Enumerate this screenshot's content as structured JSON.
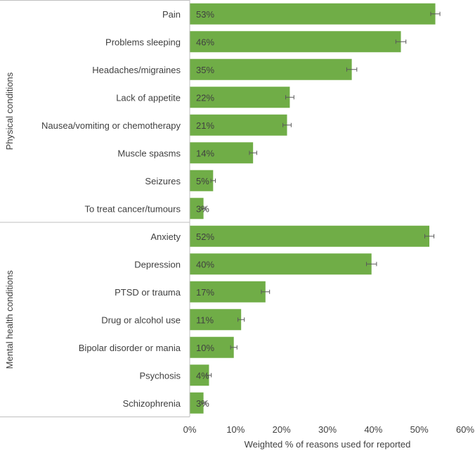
{
  "chart_data": {
    "type": "bar",
    "orientation": "horizontal",
    "xlabel": "Weighted % of reasons used for reported",
    "xlim": [
      0,
      60
    ],
    "xticks": [
      "0%",
      "10%",
      "20%",
      "30%",
      "40%",
      "50%",
      "60%"
    ],
    "grid": false,
    "bar_color": "#70ad47",
    "groups": [
      {
        "label": "Physical conditions",
        "categories": [
          "Pain",
          "Problems sleeping",
          "Headaches/migraines",
          "Lack of appetite",
          "Nausea/vomiting or chemotherapy",
          "Muscle spasms",
          "Seizures",
          "To treat cancer/tumours"
        ],
        "values": [
          53.5,
          46,
          35.3,
          21.8,
          21.2,
          13.8,
          5.1,
          3.0
        ],
        "labels": [
          "53%",
          "46%",
          "35%",
          "22%",
          "21%",
          "14%",
          "5%",
          "3%"
        ],
        "error": [
          1.0,
          1.1,
          1.1,
          0.9,
          0.9,
          0.8,
          0.5,
          0.4
        ]
      },
      {
        "label": "Mental health conditions",
        "categories": [
          "Anxiety",
          "Depression",
          "PTSD or trauma",
          "Drug or alcohol use",
          "Bipolar disorder or mania",
          "Psychosis",
          "Schizophrenia"
        ],
        "values": [
          52.2,
          39.6,
          16.5,
          11.2,
          9.6,
          4.2,
          3.0
        ],
        "labels": [
          "52%",
          "40%",
          "17%",
          "11%",
          "10%",
          "4%",
          "3%"
        ],
        "error": [
          1.0,
          1.1,
          0.9,
          0.7,
          0.7,
          0.5,
          0.4
        ]
      }
    ]
  }
}
